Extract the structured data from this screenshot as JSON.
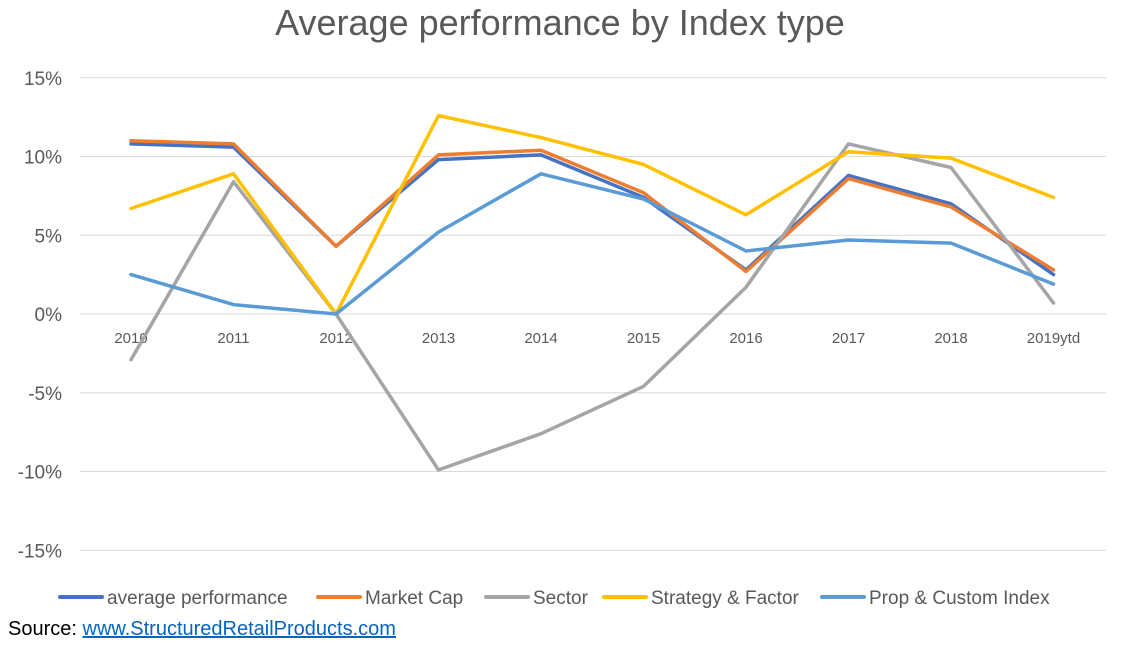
{
  "chart_data": {
    "type": "line",
    "title": "Average performance by Index type",
    "xlabel": "",
    "ylabel": "",
    "categories": [
      "2010",
      "2011",
      "2012",
      "2013",
      "2014",
      "2015",
      "2016",
      "2017",
      "2018",
      "2019ytd"
    ],
    "ylim": [
      -15,
      15
    ],
    "yticks": [
      15,
      10,
      5,
      0,
      -5,
      -10,
      -15
    ],
    "ytick_labels": [
      "15%",
      "10%",
      "5%",
      "0%",
      "-5%",
      "-10%",
      "-15%"
    ],
    "grid": true,
    "legend_position": "bottom",
    "series": [
      {
        "name": "average performance",
        "color": "#4472c4",
        "values": [
          10.8,
          10.6,
          4.3,
          9.8,
          10.1,
          7.4,
          2.8,
          8.8,
          7.0,
          2.5
        ]
      },
      {
        "name": "Market Cap",
        "color": "#ed7d31",
        "values": [
          11.0,
          10.8,
          4.3,
          10.1,
          10.4,
          7.7,
          2.7,
          8.6,
          6.8,
          2.8
        ]
      },
      {
        "name": "Sector",
        "color": "#a5a5a5",
        "values": [
          -2.9,
          8.4,
          0.0,
          -9.9,
          -7.6,
          -4.6,
          1.7,
          10.8,
          9.3,
          0.7
        ]
      },
      {
        "name": "Strategy & Factor",
        "color": "#ffc000",
        "values": [
          6.7,
          8.9,
          0.0,
          12.6,
          11.2,
          9.5,
          6.3,
          10.3,
          9.9,
          7.4
        ]
      },
      {
        "name": "Prop & Custom Index",
        "color": "#5b9bd5",
        "values": [
          2.5,
          0.6,
          0.0,
          5.2,
          8.9,
          7.3,
          4.0,
          4.7,
          4.5,
          1.9
        ]
      }
    ]
  },
  "source": {
    "label": "Source:",
    "link_text": "www.StructuredRetailProducts.com"
  }
}
